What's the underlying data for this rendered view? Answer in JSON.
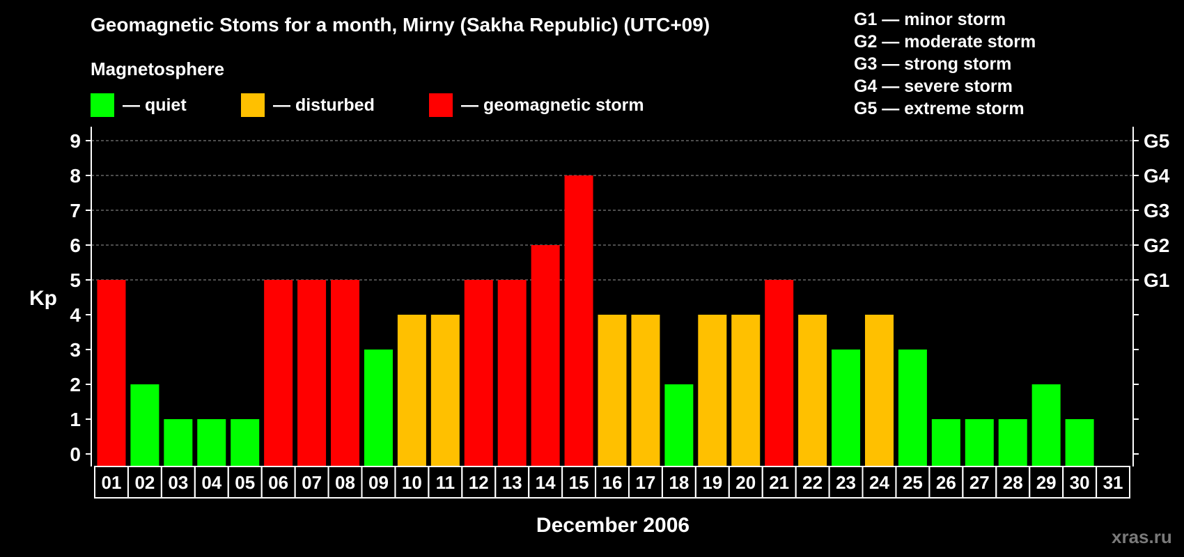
{
  "title": "Geomagnetic Stoms for a month, Mirny (Sakha Republic) (UTC+09)",
  "legend": {
    "title": "Magnetosphere",
    "items": [
      {
        "label": "— quiet",
        "color": "#00ff00"
      },
      {
        "label": "— disturbed",
        "color": "#ffc000"
      },
      {
        "label": "— geomagnetic storm",
        "color": "#ff0000"
      }
    ]
  },
  "storm_scale": [
    "G1 — minor storm",
    "G2 — moderate storm",
    "G3 — strong storm",
    "G4 — severe storm",
    "G5 — extreme storm"
  ],
  "watermark": "xras.ru",
  "chart_data": {
    "type": "bar",
    "title": "Geomagnetic Stoms for a month, Mirny (Sakha Republic) (UTC+09)",
    "xlabel": "December 2006",
    "ylabel": "Kp",
    "ylim": [
      0,
      9
    ],
    "yticks": [
      0,
      1,
      2,
      3,
      4,
      5,
      6,
      7,
      8,
      9
    ],
    "right_ticks": [
      {
        "value": 5,
        "label": "G1"
      },
      {
        "value": 6,
        "label": "G2"
      },
      {
        "value": 7,
        "label": "G3"
      },
      {
        "value": 8,
        "label": "G4"
      },
      {
        "value": 9,
        "label": "G5"
      }
    ],
    "grid": true,
    "categories": [
      "01",
      "02",
      "03",
      "04",
      "05",
      "06",
      "07",
      "08",
      "09",
      "10",
      "11",
      "12",
      "13",
      "14",
      "15",
      "16",
      "17",
      "18",
      "19",
      "20",
      "21",
      "22",
      "23",
      "24",
      "25",
      "26",
      "27",
      "28",
      "29",
      "30",
      "31"
    ],
    "values": [
      5,
      2,
      1,
      1,
      1,
      5,
      5,
      5,
      3,
      4,
      4,
      5,
      5,
      6,
      8,
      4,
      4,
      2,
      4,
      4,
      5,
      4,
      3,
      4,
      3,
      1,
      1,
      1,
      2,
      1,
      null
    ],
    "colors": {
      "quiet": "#00ff00",
      "disturbed": "#ffc000",
      "storm": "#ff0000"
    }
  }
}
